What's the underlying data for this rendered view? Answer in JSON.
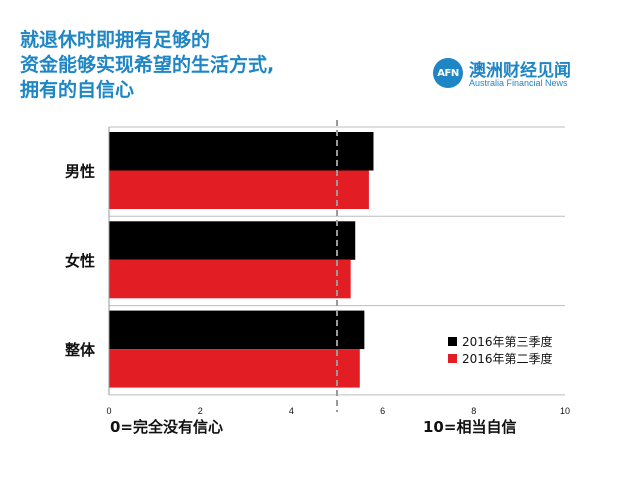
{
  "title_lines": [
    "就退休时即拥有足够的",
    "资金能够实现希望的生活方式,",
    "拥有的自信心"
  ],
  "brand": {
    "logo": "AFN",
    "name": "澳洲财经见闻",
    "sub": "Australia Financial News"
  },
  "captions": {
    "left": "0=完全没有信心",
    "right": "10=相当自信"
  },
  "colors": {
    "q3": "#000000",
    "q2": "#e31d24",
    "title": "#1f86c6"
  },
  "chart_data": {
    "type": "bar",
    "orientation": "horizontal",
    "categories": [
      "男性",
      "女性",
      "整体"
    ],
    "series": [
      {
        "name": "2016年第三季度",
        "values": [
          5.8,
          5.4,
          5.6
        ]
      },
      {
        "name": "2016年第二季度",
        "values": [
          5.7,
          5.3,
          5.5
        ]
      }
    ],
    "xlim": [
      0,
      10
    ],
    "xticks": [
      "0",
      "2",
      "4",
      "6",
      "8",
      "10"
    ],
    "reference_line": 5,
    "legend": "bottom-right",
    "grid": true
  }
}
